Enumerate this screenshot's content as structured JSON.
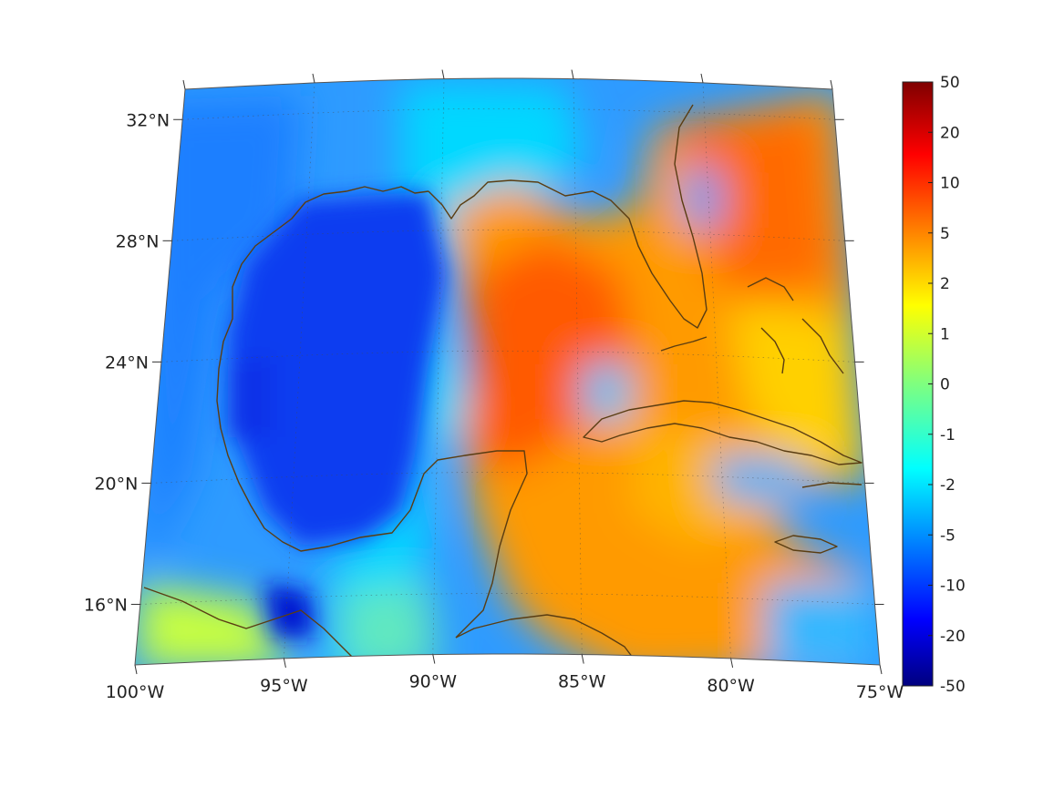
{
  "map": {
    "projection": "conic",
    "lon_range": [
      -100,
      -75
    ],
    "lat_range": [
      14,
      33
    ],
    "lon_labels": [
      {
        "lon": -100,
        "text": "100°W"
      },
      {
        "lon": -95,
        "text": "95°W"
      },
      {
        "lon": -90,
        "text": "90°W"
      },
      {
        "lon": -85,
        "text": "85°W"
      },
      {
        "lon": -80,
        "text": "80°W"
      },
      {
        "lon": -75,
        "text": "75°W"
      }
    ],
    "lat_labels": [
      {
        "lat": 32,
        "text": "32°N"
      },
      {
        "lat": 28,
        "text": "28°N"
      },
      {
        "lat": 24,
        "text": "24°N"
      },
      {
        "lat": 20,
        "text": "20°N"
      },
      {
        "lat": 16,
        "text": "16°N"
      }
    ],
    "coastline_color": "#5a3d12",
    "grid": "dotted"
  },
  "colorbar": {
    "colormap": "jet",
    "labels": [
      "50",
      "20",
      "10",
      "5",
      "2",
      "1",
      "0",
      "-1",
      "-2",
      "-5",
      "-10",
      "-20",
      "-50"
    ]
  }
}
